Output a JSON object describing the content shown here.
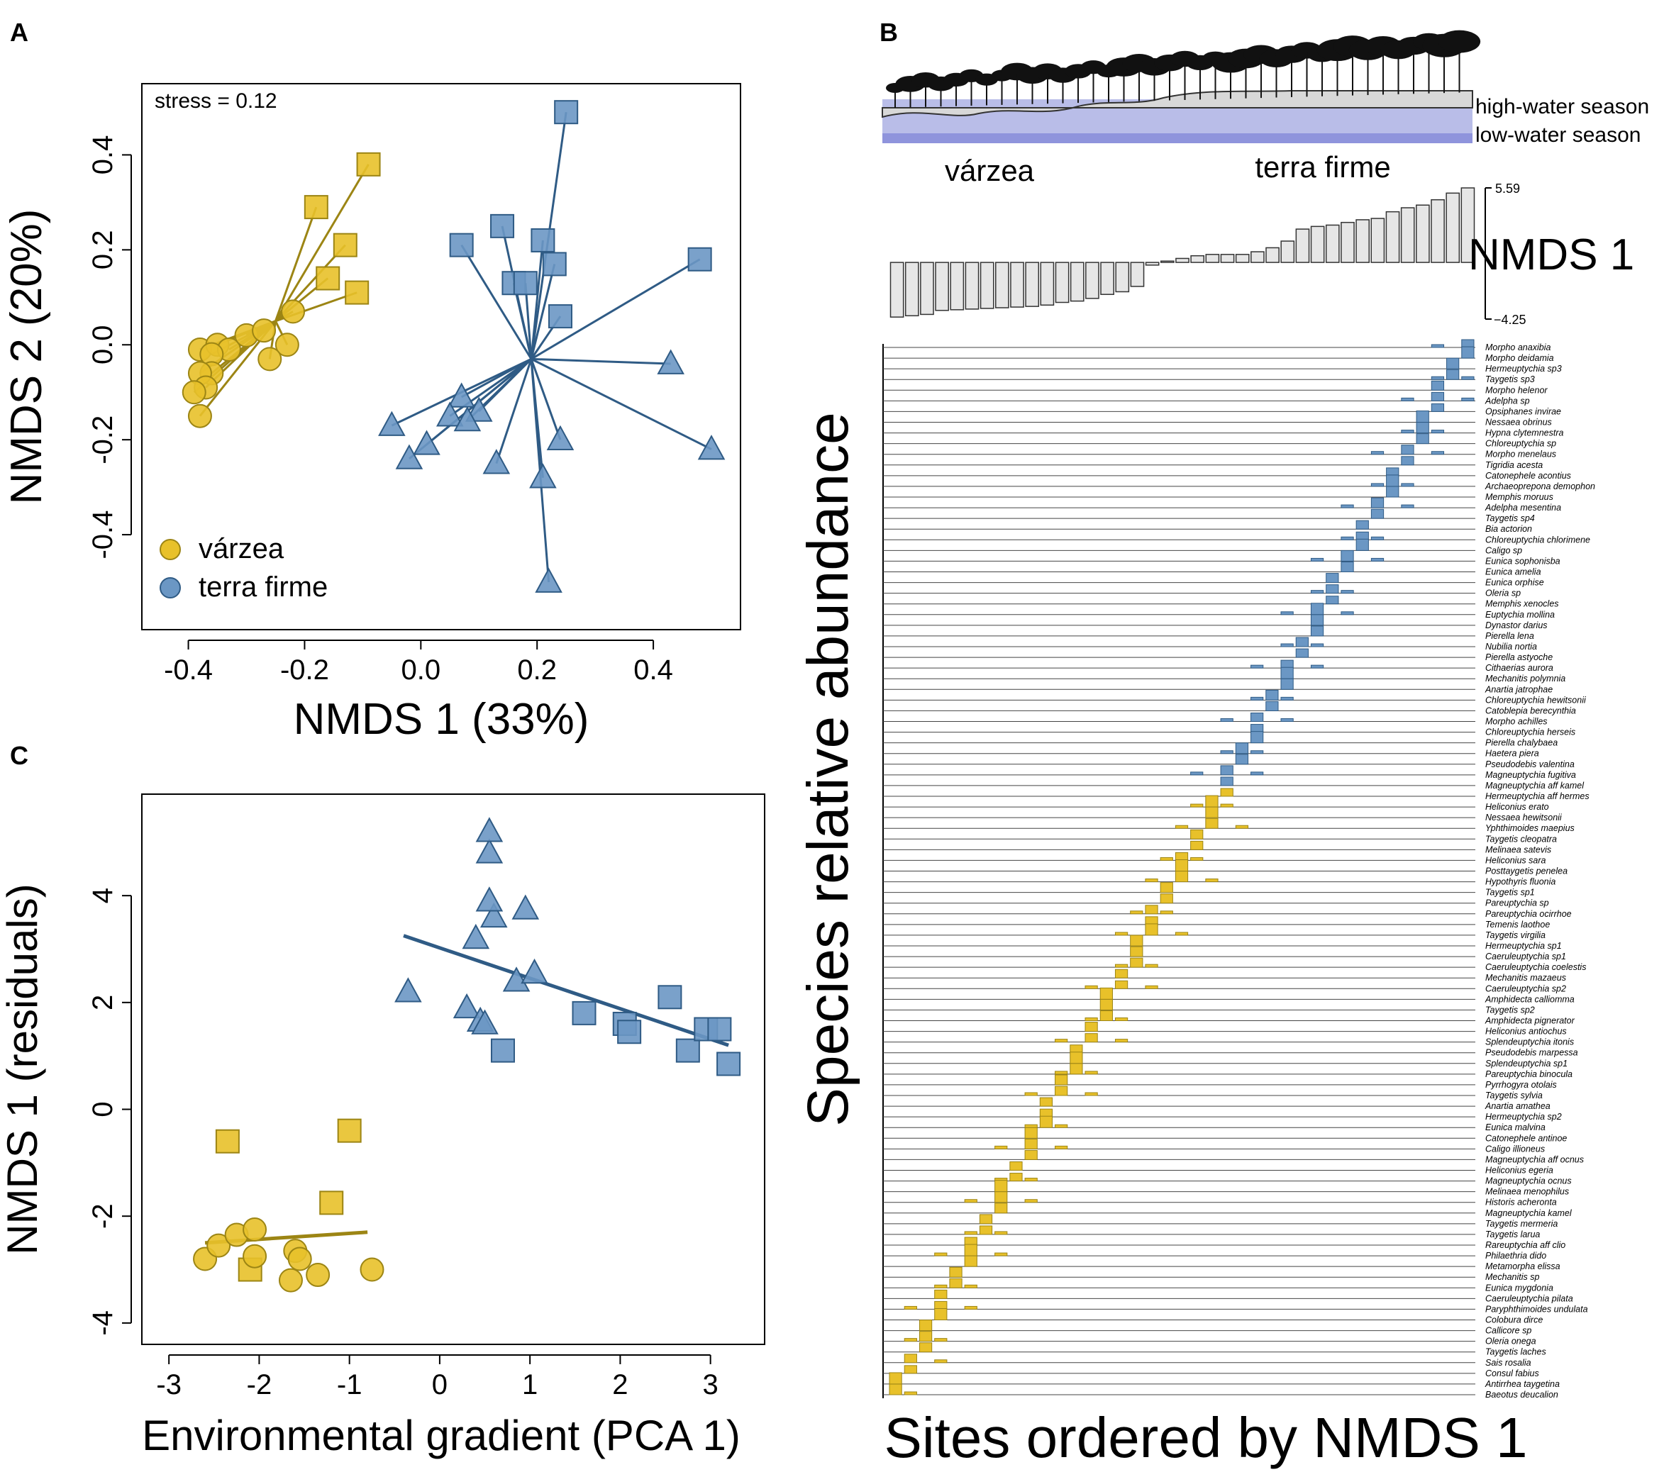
{
  "colors": {
    "varzea": "#e8c12a",
    "varzea_line": "#9c8514",
    "terra": "#6b97c4",
    "terra_line": "#2f5b85",
    "bar": "#e6e6e6",
    "water_high": "#b9bde8",
    "water_low": "#8f94dc"
  },
  "panelA": {
    "label": "A",
    "chart_data": {
      "type": "scatter",
      "title": "",
      "stress": "stress = 0.12",
      "xlabel": "NMDS 1 (33%)",
      "ylabel": "NMDS 2 (20%)",
      "xlim": [
        -0.48,
        0.55
      ],
      "ylim": [
        -0.6,
        0.55
      ],
      "xticks": [
        -0.4,
        -0.2,
        0.0,
        0.2,
        0.4
      ],
      "xtick_labels": [
        "-0.4",
        "-0.2",
        "0.0",
        "0.2",
        "0.4"
      ],
      "yticks": [
        -0.4,
        -0.2,
        0.0,
        0.2,
        0.4
      ],
      "ytick_labels": [
        "-0.4",
        "-0.2",
        "0.0",
        "0.2",
        "0.4"
      ],
      "legend": [
        {
          "label": "várzea",
          "group": "varzea"
        },
        {
          "label": "terra firme",
          "group": "terra"
        }
      ],
      "centroids": {
        "varzea": [
          -0.25,
          0.05
        ],
        "terra": [
          0.19,
          -0.03
        ]
      },
      "series": [
        {
          "name": "várzea squares",
          "group": "varzea",
          "marker": "square",
          "points": [
            [
              -0.09,
              0.38
            ],
            [
              -0.18,
              0.29
            ],
            [
              -0.13,
              0.21
            ],
            [
              -0.16,
              0.14
            ],
            [
              -0.11,
              0.11
            ]
          ]
        },
        {
          "name": "várzea circles",
          "group": "varzea",
          "marker": "circle",
          "points": [
            [
              -0.38,
              -0.01
            ],
            [
              -0.35,
              0.0
            ],
            [
              -0.33,
              -0.01
            ],
            [
              -0.3,
              0.02
            ],
            [
              -0.22,
              0.07
            ],
            [
              -0.27,
              0.03
            ],
            [
              -0.23,
              0.0
            ],
            [
              -0.26,
              -0.03
            ],
            [
              -0.36,
              -0.02
            ],
            [
              -0.36,
              -0.06
            ],
            [
              -0.38,
              -0.06
            ],
            [
              -0.37,
              -0.09
            ],
            [
              -0.39,
              -0.1
            ],
            [
              -0.38,
              -0.15
            ]
          ]
        },
        {
          "name": "terra firme squares",
          "group": "terra",
          "marker": "square",
          "points": [
            [
              0.25,
              0.49
            ],
            [
              0.07,
              0.21
            ],
            [
              0.14,
              0.25
            ],
            [
              0.21,
              0.22
            ],
            [
              0.23,
              0.17
            ],
            [
              0.16,
              0.13
            ],
            [
              0.18,
              0.13
            ],
            [
              0.24,
              0.06
            ],
            [
              0.48,
              0.18
            ]
          ]
        },
        {
          "name": "terra firme triangles",
          "group": "terra",
          "marker": "triangle",
          "points": [
            [
              0.43,
              -0.04
            ],
            [
              -0.05,
              -0.17
            ],
            [
              0.07,
              -0.11
            ],
            [
              0.1,
              -0.14
            ],
            [
              0.05,
              -0.15
            ],
            [
              0.08,
              -0.16
            ],
            [
              0.01,
              -0.21
            ],
            [
              -0.02,
              -0.24
            ],
            [
              0.13,
              -0.25
            ],
            [
              0.24,
              -0.2
            ],
            [
              0.5,
              -0.22
            ],
            [
              0.21,
              -0.28
            ],
            [
              0.22,
              -0.5
            ]
          ]
        }
      ]
    }
  },
  "panelB": {
    "label": "B",
    "habitats": [
      "várzea",
      "terra firme"
    ],
    "water_labels": [
      "high-water season",
      "low-water season"
    ],
    "bars": {
      "chart_data": {
        "type": "bar",
        "title": "NMDS 1",
        "ylim": [
          -4.25,
          5.59
        ],
        "tick_labels": [
          "5.59",
          "−4.25"
        ],
        "sites": 39,
        "values": [
          -4.1,
          -4.0,
          -3.9,
          -3.6,
          -3.55,
          -3.5,
          -3.45,
          -3.4,
          -3.35,
          -3.3,
          -3.2,
          -3.0,
          -2.9,
          -2.7,
          -2.4,
          -2.2,
          -1.8,
          -0.2,
          0.1,
          0.3,
          0.5,
          0.6,
          0.6,
          0.6,
          0.8,
          1.1,
          1.6,
          2.5,
          2.7,
          2.8,
          3.0,
          3.2,
          3.3,
          3.8,
          4.1,
          4.3,
          4.7,
          5.2,
          5.59
        ]
      }
    },
    "ylabel": "Species relative abundance",
    "xlabel": "Sites ordered by NMDS 1",
    "species": [
      "Morpho anaxibia",
      "Morpho deidamia",
      "Hermeuptychia sp3",
      "Taygetis sp3",
      "Morpho helenor",
      "Adelpha sp",
      "Opsiphanes invirae",
      "Nessaea obrinus",
      "Hypna clytemnestra",
      "Chloreuptychia sp",
      "Morpho menelaus",
      "Tigridia acesta",
      "Catonephele acontius",
      "Archaeoprepona demophon",
      "Memphis moruus",
      "Adelpha mesentina",
      "Taygetis sp4",
      "Bia actorion",
      "Chloreuptychia chlorimene",
      "Caligo sp",
      "Eunica sophonisba",
      "Eunica amelia",
      "Eunica orphise",
      "Oleria sp",
      "Memphis xenocles",
      "Euptychia mollina",
      "Dynastor darius",
      "Pierella lena",
      "Nubilia nortia",
      "Pierella astyoche",
      "Cithaerias aurora",
      "Mechanitis polymnia",
      "Anartia jatrophae",
      "Chloreuptychia hewitsonii",
      "Catoblepia berecynthia",
      "Morpho achilles",
      "Chloreuptychia herseis",
      "Pierella chalybaea",
      "Haetera piera",
      "Pseudodebis valentina",
      "Magneuptychia fugitiva",
      "Magneuptychia aff kamel",
      "Hermeuptychia aff hermes",
      "Heliconius erato",
      "Nessaea hewitsonii",
      "Yphthimoides maepius",
      "Taygetis cleopatra",
      "Melinaea satevis",
      "Heliconius sara",
      "Posttaygetis penelea",
      "Hypothyris fluonia",
      "Taygetis sp1",
      "Pareuptychia sp",
      "Pareuptychia ocirrhoe",
      "Temenis laothoe",
      "Taygetis virgilia",
      "Hermeuptychia sp1",
      "Caeruleuptychia sp1",
      "Caeruleuptychia coelestis",
      "Mechanitis mazaeus",
      "Caeruleuptychia sp2",
      "Amphidecta calliomma",
      "Taygetis sp2",
      "Amphidecta pignerator",
      "Heliconius antiochus",
      "Splendeuptychia itonis",
      "Pseudodebis marpessa",
      "Splendeuptychia sp1",
      "Pareuptychia binocula",
      "Pyrrhogyra otolais",
      "Taygetis sylvia",
      "Anartia amathea",
      "Hermeuptychia sp2",
      "Eunica malvina",
      "Catonephele antinoe",
      "Caligo illioneus",
      "Magneuptychia aff ocnus",
      "Heliconius egeria",
      "Magneuptychia ocnus",
      "Melinaea menophilus",
      "Historis acheronta",
      "Magneuptychia kamel",
      "Taygetis mermeria",
      "Taygetis larua",
      "Rareuptychia aff clio",
      "Philaethria dido",
      "Metamorpha elissa",
      "Mechanitis sp",
      "Eunica mygdonia",
      "Caeruleuptychia pilata",
      "Paryphthimoides undulata",
      "Colobura dirce",
      "Callicore sp",
      "Oleria onega",
      "Taygetis laches",
      "Sais rosalia",
      "Consul fabius",
      "Antirrhea taygetina",
      "Baeotus deucalion"
    ]
  },
  "panelC": {
    "label": "C",
    "chart_data": {
      "type": "scatter",
      "xlabel": "Environmental gradient (PCA 1)",
      "ylabel": "NMDS 1 (residuals)",
      "xlim": [
        -3.3,
        3.6
      ],
      "ylim": [
        -4.4,
        5.9
      ],
      "xticks": [
        -3,
        -2,
        -1,
        0,
        1,
        2,
        3
      ],
      "xtick_labels": [
        "-3",
        "-2",
        "-1",
        "0",
        "1",
        "2",
        "3"
      ],
      "yticks": [
        -4,
        -2,
        0,
        2,
        4
      ],
      "ytick_labels": [
        "-4",
        "-2",
        "0",
        "2",
        "4"
      ],
      "fit_lines": [
        {
          "group": "terra",
          "from": [
            -0.4,
            3.25
          ],
          "to": [
            3.2,
            1.2
          ]
        },
        {
          "group": "varzea",
          "from": [
            -2.6,
            -2.5
          ],
          "to": [
            -0.8,
            -2.3
          ]
        }
      ],
      "series": [
        {
          "name": "várzea squares",
          "group": "varzea",
          "marker": "square",
          "points": [
            [
              -2.35,
              -0.6
            ],
            [
              -1.0,
              -0.4
            ],
            [
              -1.2,
              -1.75
            ],
            [
              -2.1,
              -3.0
            ]
          ]
        },
        {
          "name": "várzea circles",
          "group": "varzea",
          "marker": "circle",
          "points": [
            [
              -2.6,
              -2.8
            ],
            [
              -2.45,
              -2.55
            ],
            [
              -2.25,
              -2.35
            ],
            [
              -2.05,
              -2.25
            ],
            [
              -2.05,
              -2.75
            ],
            [
              -1.6,
              -2.65
            ],
            [
              -1.55,
              -2.8
            ],
            [
              -1.65,
              -3.2
            ],
            [
              -1.35,
              -3.1
            ],
            [
              -0.75,
              -3.0
            ]
          ]
        },
        {
          "name": "terra firme squares",
          "group": "terra",
          "marker": "square",
          "points": [
            [
              0.7,
              1.1
            ],
            [
              1.6,
              1.8
            ],
            [
              2.05,
              1.6
            ],
            [
              2.1,
              1.45
            ],
            [
              2.55,
              2.1
            ],
            [
              2.75,
              1.1
            ],
            [
              2.95,
              1.5
            ],
            [
              3.1,
              1.5
            ],
            [
              3.2,
              0.85
            ]
          ]
        },
        {
          "name": "terra firme triangles",
          "group": "terra",
          "marker": "triangle",
          "points": [
            [
              -0.35,
              2.2
            ],
            [
              0.3,
              1.9
            ],
            [
              0.45,
              1.65
            ],
            [
              0.5,
              1.6
            ],
            [
              0.4,
              3.2
            ],
            [
              0.6,
              3.6
            ],
            [
              0.55,
              3.9
            ],
            [
              0.95,
              3.75
            ],
            [
              0.85,
              2.4
            ],
            [
              1.05,
              2.55
            ],
            [
              0.55,
              4.8
            ],
            [
              0.55,
              5.2
            ]
          ]
        }
      ]
    }
  }
}
